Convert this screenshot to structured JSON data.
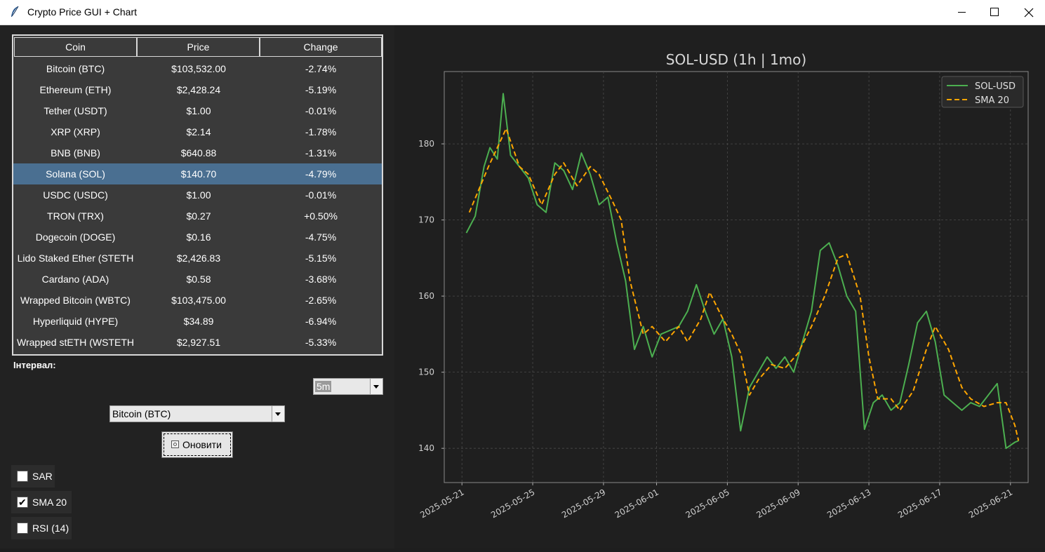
{
  "window": {
    "title": "Crypto Price GUI + Chart"
  },
  "table": {
    "columns": [
      "Coin",
      "Price",
      "Change"
    ],
    "selected_index": 5,
    "rows": [
      [
        "Bitcoin (BTC)",
        "$103,532.00",
        "-2.74%"
      ],
      [
        "Ethereum (ETH)",
        "$2,428.24",
        "-5.19%"
      ],
      [
        "Tether (USDT)",
        "$1.00",
        "-0.01%"
      ],
      [
        "XRP (XRP)",
        "$2.14",
        "-1.78%"
      ],
      [
        "BNB (BNB)",
        "$640.88",
        "-1.31%"
      ],
      [
        "Solana (SOL)",
        "$140.70",
        "-4.79%"
      ],
      [
        "USDC (USDC)",
        "$1.00",
        "-0.01%"
      ],
      [
        "TRON (TRX)",
        "$0.27",
        "+0.50%"
      ],
      [
        "Dogecoin (DOGE)",
        "$0.16",
        "-4.75%"
      ],
      [
        "Lido Staked Ether (STETH",
        "$2,426.83",
        "-5.15%"
      ],
      [
        "Cardano (ADA)",
        "$0.58",
        "-3.68%"
      ],
      [
        "Wrapped Bitcoin (WBTC)",
        "$103,475.00",
        "-2.65%"
      ],
      [
        "Hyperliquid (HYPE)",
        "$34.89",
        "-6.94%"
      ],
      [
        "Wrapped stETH (WSTETH",
        "$2,927.51",
        "-5.33%"
      ]
    ]
  },
  "controls": {
    "interval_label": "Інтервал:",
    "interval_value": "5m",
    "coin_value": "Bitcoin (BTC)",
    "refresh_label": "Оновити",
    "checkboxes": [
      {
        "label": "SAR",
        "checked": false
      },
      {
        "label": "SMA 20",
        "checked": true
      },
      {
        "label": "RSI (14)",
        "checked": false
      }
    ]
  },
  "chart_data": {
    "type": "line",
    "title": "SOL-USD (1h | 1mo)",
    "xlabel": "",
    "ylabel": "",
    "x_start": "2025-05-21 06:00",
    "x_end": "2025-06-21 11:00",
    "xlim": [
      "2025-05-20",
      "2025-06-22"
    ],
    "ylim": [
      135.5,
      189.5
    ],
    "xticks": [
      "2025-05-21",
      "2025-05-25",
      "2025-05-29",
      "2025-06-01",
      "2025-06-05",
      "2025-06-09",
      "2025-06-13",
      "2025-06-17",
      "2025-06-21"
    ],
    "yticks": [
      140,
      150,
      160,
      170,
      180
    ],
    "grid": true,
    "legend": "top-right",
    "colors": {
      "SOL-USD": "#4caf50",
      "SMA 20": "#ffa500"
    },
    "series": [
      {
        "name": "SOL-USD",
        "style": "solid",
        "points": [
          [
            "2025-05-21 06:00",
            168.3
          ],
          [
            "2025-05-21 18:00",
            170.5
          ],
          [
            "2025-05-22 06:00",
            177.0
          ],
          [
            "2025-05-22 14:00",
            179.5
          ],
          [
            "2025-05-23 00:00",
            178.0
          ],
          [
            "2025-05-23 08:00",
            186.6
          ],
          [
            "2025-05-23 18:00",
            178.5
          ],
          [
            "2025-05-24 06:00",
            177.0
          ],
          [
            "2025-05-24 18:00",
            175.5
          ],
          [
            "2025-05-25 06:00",
            172.0
          ],
          [
            "2025-05-25 18:00",
            171.0
          ],
          [
            "2025-05-26 06:00",
            177.5
          ],
          [
            "2025-05-26 18:00",
            176.5
          ],
          [
            "2025-05-27 06:00",
            174.0
          ],
          [
            "2025-05-27 18:00",
            178.8
          ],
          [
            "2025-05-28 06:00",
            176.0
          ],
          [
            "2025-05-28 18:00",
            172.0
          ],
          [
            "2025-05-29 06:00",
            173.0
          ],
          [
            "2025-05-29 18:00",
            167.0
          ],
          [
            "2025-05-30 06:00",
            162.0
          ],
          [
            "2025-05-30 18:00",
            153.0
          ],
          [
            "2025-05-31 06:00",
            156.0
          ],
          [
            "2025-05-31 18:00",
            152.0
          ],
          [
            "2025-06-01 06:00",
            155.0
          ],
          [
            "2025-06-01 18:00",
            155.5
          ],
          [
            "2025-06-02 06:00",
            156.0
          ],
          [
            "2025-06-02 18:00",
            158.0
          ],
          [
            "2025-06-03 06:00",
            161.5
          ],
          [
            "2025-06-03 18:00",
            158.0
          ],
          [
            "2025-06-04 06:00",
            155.0
          ],
          [
            "2025-06-04 18:00",
            157.0
          ],
          [
            "2025-06-05 06:00",
            152.0
          ],
          [
            "2025-06-05 18:00",
            142.3
          ],
          [
            "2025-06-06 06:00",
            148.0
          ],
          [
            "2025-06-06 18:00",
            150.0
          ],
          [
            "2025-06-07 06:00",
            152.0
          ],
          [
            "2025-06-07 18:00",
            150.5
          ],
          [
            "2025-06-08 06:00",
            152.0
          ],
          [
            "2025-06-08 18:00",
            150.0
          ],
          [
            "2025-06-09 06:00",
            154.0
          ],
          [
            "2025-06-09 18:00",
            158.0
          ],
          [
            "2025-06-10 06:00",
            166.0
          ],
          [
            "2025-06-10 18:00",
            167.0
          ],
          [
            "2025-06-11 06:00",
            164.0
          ],
          [
            "2025-06-11 18:00",
            160.0
          ],
          [
            "2025-06-12 06:00",
            158.0
          ],
          [
            "2025-06-12 18:00",
            142.5
          ],
          [
            "2025-06-13 06:00",
            146.0
          ],
          [
            "2025-06-13 18:00",
            147.0
          ],
          [
            "2025-06-14 06:00",
            145.0
          ],
          [
            "2025-06-14 18:00",
            146.0
          ],
          [
            "2025-06-15 06:00",
            151.0
          ],
          [
            "2025-06-15 18:00",
            156.5
          ],
          [
            "2025-06-16 06:00",
            158.0
          ],
          [
            "2025-06-16 18:00",
            154.0
          ],
          [
            "2025-06-17 06:00",
            147.0
          ],
          [
            "2025-06-17 18:00",
            146.0
          ],
          [
            "2025-06-18 06:00",
            145.0
          ],
          [
            "2025-06-18 18:00",
            146.0
          ],
          [
            "2025-06-19 06:00",
            145.5
          ],
          [
            "2025-06-19 18:00",
            147.0
          ],
          [
            "2025-06-20 06:00",
            148.5
          ],
          [
            "2025-06-20 18:00",
            140.0
          ],
          [
            "2025-06-21 06:00",
            140.8
          ],
          [
            "2025-06-21 11:00",
            141.0
          ]
        ]
      },
      {
        "name": "SMA 20",
        "style": "dashed",
        "points": [
          [
            "2025-05-21 10:00",
            171.0
          ],
          [
            "2025-05-22 12:00",
            177.0
          ],
          [
            "2025-05-23 12:00",
            182.0
          ],
          [
            "2025-05-24 06:00",
            177.0
          ],
          [
            "2025-05-24 18:00",
            176.0
          ],
          [
            "2025-05-25 12:00",
            172.0
          ],
          [
            "2025-05-26 06:00",
            176.0
          ],
          [
            "2025-05-26 18:00",
            177.5
          ],
          [
            "2025-05-27 12:00",
            174.5
          ],
          [
            "2025-05-28 06:00",
            177.0
          ],
          [
            "2025-05-28 18:00",
            176.0
          ],
          [
            "2025-05-29 12:00",
            172.5
          ],
          [
            "2025-05-30 00:00",
            170.0
          ],
          [
            "2025-05-30 12:00",
            162.0
          ],
          [
            "2025-05-31 06:00",
            155.0
          ],
          [
            "2025-05-31 18:00",
            156.0
          ],
          [
            "2025-06-01 12:00",
            154.0
          ],
          [
            "2025-06-02 06:00",
            156.0
          ],
          [
            "2025-06-02 18:00",
            154.0
          ],
          [
            "2025-06-03 12:00",
            157.0
          ],
          [
            "2025-06-04 00:00",
            160.5
          ],
          [
            "2025-06-04 18:00",
            157.0
          ],
          [
            "2025-06-05 06:00",
            155.0
          ],
          [
            "2025-06-05 18:00",
            152.5
          ],
          [
            "2025-06-06 06:00",
            147.0
          ],
          [
            "2025-06-06 18:00",
            149.0
          ],
          [
            "2025-06-07 12:00",
            151.0
          ],
          [
            "2025-06-08 06:00",
            150.5
          ],
          [
            "2025-06-09 00:00",
            152.5
          ],
          [
            "2025-06-09 18:00",
            156.0
          ],
          [
            "2025-06-10 12:00",
            160.0
          ],
          [
            "2025-06-11 06:00",
            165.0
          ],
          [
            "2025-06-11 18:00",
            165.5
          ],
          [
            "2025-06-12 12:00",
            160.0
          ],
          [
            "2025-06-13 00:00",
            152.0
          ],
          [
            "2025-06-13 12:00",
            146.5
          ],
          [
            "2025-06-14 06:00",
            146.5
          ],
          [
            "2025-06-14 18:00",
            145.0
          ],
          [
            "2025-06-15 12:00",
            147.5
          ],
          [
            "2025-06-16 06:00",
            153.0
          ],
          [
            "2025-06-16 18:00",
            156.0
          ],
          [
            "2025-06-17 12:00",
            153.0
          ],
          [
            "2025-06-18 06:00",
            148.0
          ],
          [
            "2025-06-18 18:00",
            146.5
          ],
          [
            "2025-06-19 12:00",
            145.5
          ],
          [
            "2025-06-20 06:00",
            146.0
          ],
          [
            "2025-06-20 18:00",
            146.0
          ],
          [
            "2025-06-21 06:00",
            143.0
          ],
          [
            "2025-06-21 11:00",
            141.0
          ]
        ]
      }
    ]
  }
}
